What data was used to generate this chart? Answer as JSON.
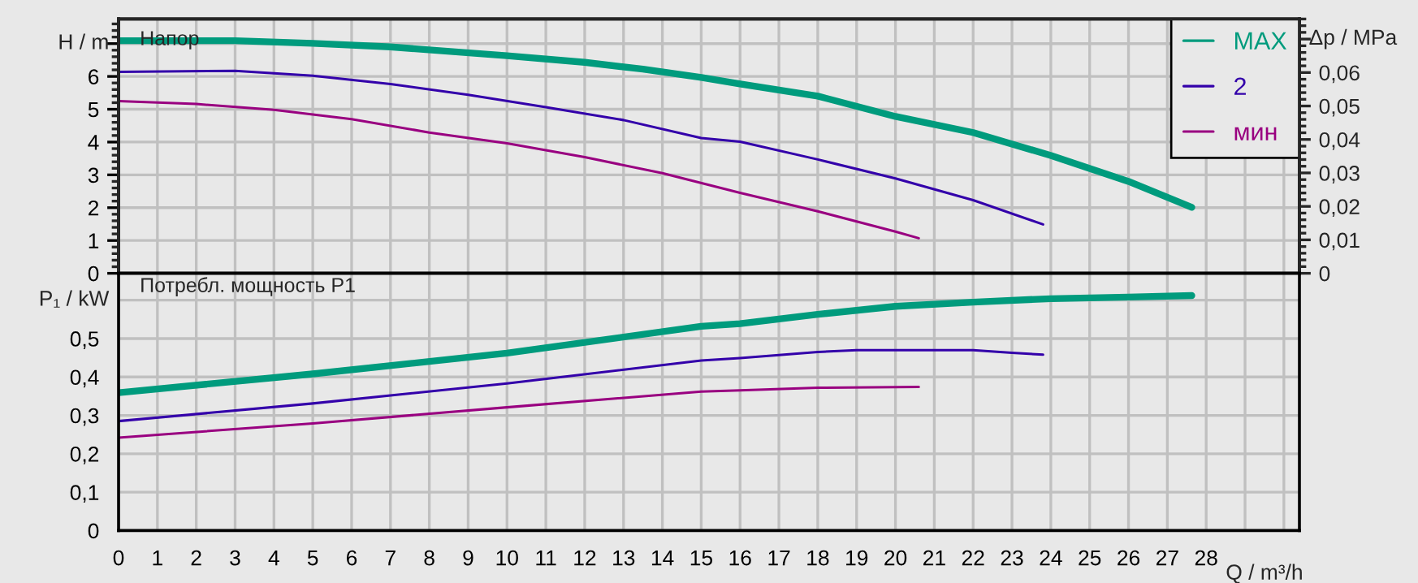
{
  "chart_data": [
    {
      "type": "line",
      "title": "Напор",
      "ylabel": "H / m",
      "y2label": "Δp / MPa",
      "xlim": [
        0,
        30.4
      ],
      "ylim": [
        0,
        7.75
      ],
      "y2lim": [
        0,
        0.076
      ],
      "yticks": [
        0,
        1,
        2,
        3,
        4,
        5,
        6,
        {
          "value": 7,
          "label": null
        }
      ],
      "y2ticks": [
        0,
        {
          "value": 0.01,
          "label": "0,01"
        },
        {
          "value": 0.02,
          "label": "0,02"
        },
        {
          "value": 0.03,
          "label": "0,03"
        },
        {
          "value": 0.04,
          "label": "0,04"
        },
        {
          "value": 0.05,
          "label": "0,05"
        },
        {
          "value": 0.06,
          "label": "0,06"
        },
        {
          "value": 0.07,
          "label": null
        }
      ],
      "xticks": [
        0,
        1,
        2,
        3,
        4,
        5,
        6,
        7,
        8,
        9,
        10,
        11,
        12,
        13,
        14,
        15,
        16,
        17,
        18,
        19,
        20,
        21,
        22,
        23,
        24,
        25,
        26,
        27,
        28,
        29,
        30
      ],
      "tick_labels": "y",
      "grid": true,
      "legend": "top right",
      "series": [
        {
          "name": "MAX",
          "color": "#009b7d",
          "x": [
            0,
            3,
            5,
            7,
            10,
            12,
            13.5,
            15,
            16,
            18,
            20,
            22,
            24,
            26,
            27.63
          ],
          "values": [
            7.09,
            7.09,
            7.01,
            6.9,
            6.63,
            6.43,
            6.22,
            5.97,
            5.77,
            5.4,
            4.78,
            4.29,
            3.59,
            2.8,
            2.01
          ]
        },
        {
          "name": "2",
          "color": "#3300aa",
          "x": [
            0,
            3,
            5,
            7,
            9,
            11,
            13,
            15,
            16,
            18,
            20,
            22,
            23.8
          ],
          "values": [
            6.14,
            6.17,
            6.02,
            5.77,
            5.44,
            5.06,
            4.67,
            4.12,
            4.01,
            3.47,
            2.89,
            2.23,
            1.49
          ]
        },
        {
          "name": "мин",
          "color": "#990080",
          "x": [
            0,
            2,
            4,
            6,
            8,
            10,
            12,
            14,
            16,
            18,
            20,
            20.6
          ],
          "values": [
            5.25,
            5.16,
            4.98,
            4.7,
            4.29,
            3.96,
            3.54,
            3.05,
            2.45,
            1.89,
            1.27,
            1.07
          ]
        }
      ]
    },
    {
      "type": "line",
      "title": "Потребл. мощность P1",
      "ylabel": "P₁ / kW",
      "xlabel": "Q / m³/h",
      "xlim": [
        0,
        30.4
      ],
      "ylim": [
        0,
        0.67
      ],
      "yticks": [
        0,
        {
          "value": 0.1,
          "label": "0,1"
        },
        {
          "value": 0.2,
          "label": "0,2"
        },
        {
          "value": 0.3,
          "label": "0,3"
        },
        {
          "value": 0.4,
          "label": "0,4"
        },
        {
          "value": 0.5,
          "label": "0,5"
        },
        {
          "value": 0.6,
          "label": null
        }
      ],
      "xticks": [
        0,
        1,
        2,
        3,
        4,
        5,
        6,
        7,
        8,
        9,
        10,
        11,
        12,
        13,
        14,
        15,
        16,
        17,
        18,
        19,
        20,
        21,
        22,
        23,
        24,
        25,
        26,
        27,
        28,
        {
          "value": 29,
          "label": null
        },
        {
          "value": 30,
          "label": null
        }
      ],
      "grid": true,
      "series": [
        {
          "color": "#009b7d",
          "x": [
            0,
            5,
            10,
            15,
            16,
            18,
            20,
            22,
            24,
            26,
            27.63
          ],
          "values": [
            0.359,
            0.408,
            0.462,
            0.532,
            0.539,
            0.563,
            0.584,
            0.595,
            0.604,
            0.608,
            0.612
          ]
        },
        {
          "color": "#3300aa",
          "x": [
            0,
            5,
            10,
            15,
            16,
            18,
            19,
            22,
            23,
            23.8
          ],
          "values": [
            0.285,
            0.331,
            0.383,
            0.443,
            0.449,
            0.465,
            0.47,
            0.47,
            0.463,
            0.458
          ]
        },
        {
          "color": "#990080",
          "x": [
            0,
            5,
            10,
            15,
            16,
            18,
            20.6
          ],
          "values": [
            0.242,
            0.279,
            0.321,
            0.362,
            0.365,
            0.372,
            0.374
          ]
        }
      ]
    }
  ]
}
